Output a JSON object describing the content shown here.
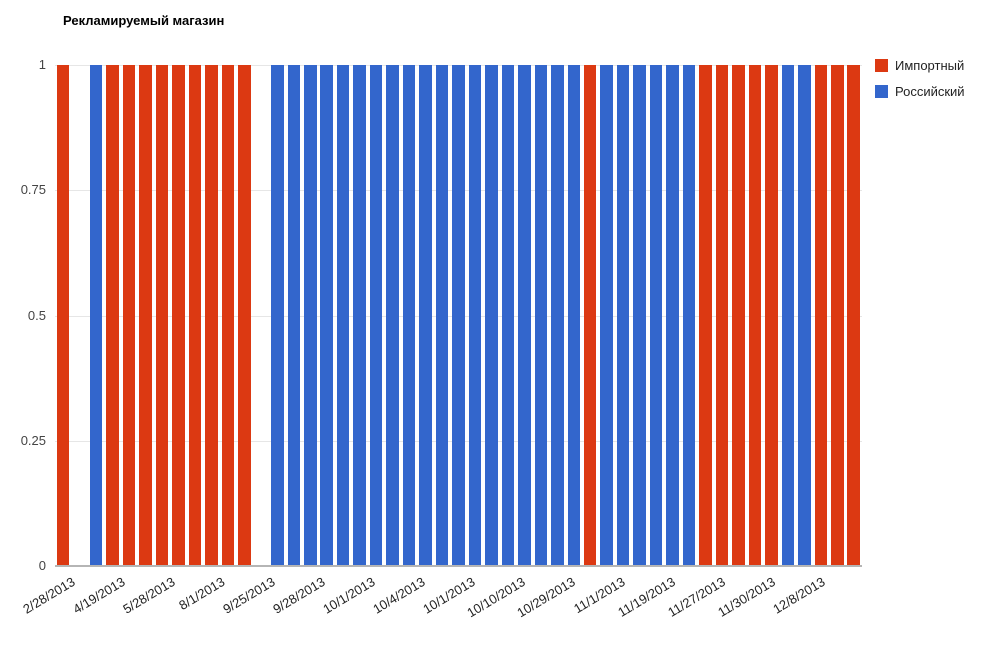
{
  "chart_data": {
    "type": "bar",
    "title": "Рекламируемый магазин",
    "xlabel": "",
    "ylabel": "",
    "ylim": [
      0,
      1
    ],
    "grid": true,
    "legend_position": "top-right",
    "y_ticks": [
      "1",
      "0.75",
      "0.5",
      "0.25",
      "0"
    ],
    "x_tick_labels": [
      "2/28/2013",
      "4/19/2013",
      "5/28/2013",
      "8/1/2013",
      "9/25/2013",
      "9/28/2013",
      "10/1/2013",
      "10/4/2013",
      "10/1/2013",
      "10/10/2013",
      "10/29/2013",
      "11/1/2013",
      "11/19/2013",
      "11/27/2013",
      "11/30/2013",
      "12/8/2013"
    ],
    "series": [
      {
        "name": "Импортный",
        "color": "#dc3912"
      },
      {
        "name": "Российский",
        "color": "#3366cc"
      }
    ],
    "bar_value": 1,
    "slots": [
      "red",
      "gap",
      "blue",
      "red",
      "red",
      "red",
      "red",
      "red",
      "red",
      "red",
      "red",
      "red",
      "gap",
      "blue",
      "blue",
      "blue",
      "blue",
      "blue",
      "blue",
      "blue",
      "blue",
      "blue",
      "blue",
      "blue",
      "blue",
      "blue",
      "blue",
      "blue",
      "blue",
      "blue",
      "blue",
      "blue",
      "red",
      "blue",
      "blue",
      "blue",
      "blue",
      "blue",
      "blue",
      "red",
      "red",
      "red",
      "red",
      "red",
      "blue",
      "blue",
      "red",
      "red",
      "red"
    ]
  },
  "legend": {
    "items": [
      {
        "label": "Импортный",
        "color": "#dc3912"
      },
      {
        "label": "Российский",
        "color": "#3366cc"
      }
    ]
  },
  "colors": {
    "imported": "#dc3912",
    "russian": "#3366cc",
    "gridline": "#e6e6e6",
    "baseline": "#b5b5b5",
    "axis_text": "#444444",
    "x_label_text": "#222222",
    "title_text": "#000000"
  }
}
